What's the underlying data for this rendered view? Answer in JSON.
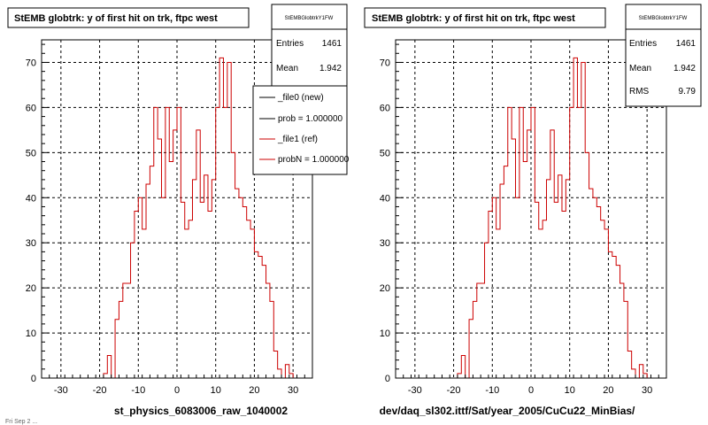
{
  "colors": {
    "histogram_line": "#cc0000",
    "frame": "#000000",
    "grid": "#000000",
    "background": "#ffffff",
    "legend_new": "#000000",
    "legend_ref": "#cc0000"
  },
  "footer_text": "Fri Sep  2 ...",
  "panels": [
    {
      "title": "StEMB globtrk: y of first hit on trk, ftpc west",
      "stats": {
        "name": "StEMBGlobtrkY1FW",
        "rows": [
          {
            "label": "Entries",
            "value": "1461"
          },
          {
            "label": "Mean",
            "value": "1.942"
          }
        ]
      },
      "legend": [
        {
          "label": "_file0 (new)",
          "color": "#000000"
        },
        {
          "label": "prob = 1.000000",
          "color": "#000000"
        },
        {
          "label": "_file1 (ref)",
          "color": "#cc0000"
        },
        {
          "label": "probN = 1.000000",
          "color": "#cc0000"
        }
      ],
      "xlabel": "st_physics_6083006_raw_1040002"
    },
    {
      "title": "StEMB globtrk: y of first hit on trk, ftpc west",
      "stats": {
        "name": "StEMBGlobtrkY1FW",
        "rows": [
          {
            "label": "Entries",
            "value": "1461"
          },
          {
            "label": "Mean",
            "value": "1.942"
          },
          {
            "label": "RMS",
            "value": "9.79"
          }
        ]
      },
      "legend": [],
      "xlabel": "dev/daq_sl302.ittf/Sat/year_2005/CuCu22_MinBias/"
    }
  ],
  "chart_data": [
    {
      "type": "histogram",
      "title": "StEMB globtrk: y of first hit on trk, ftpc west",
      "xlabel": "st_physics_6083006_raw_1040002",
      "ylabel": "",
      "xlim": [
        -35,
        35
      ],
      "ylim": [
        0,
        75
      ],
      "xticks": [
        -30,
        -20,
        -10,
        0,
        10,
        20,
        30
      ],
      "yticks": [
        0,
        10,
        20,
        30,
        40,
        50,
        60,
        70
      ],
      "grid": true,
      "legend_position": "top-right",
      "bin_width": 1,
      "bin_start": -35,
      "series": [
        {
          "name": "_file1 (ref)",
          "values": [
            0,
            0,
            0,
            0,
            0,
            0,
            0,
            0,
            0,
            0,
            0,
            0,
            0,
            0,
            0,
            0,
            1,
            5,
            0,
            13,
            17,
            21,
            21,
            30,
            37,
            40,
            33,
            43,
            47,
            60,
            53,
            40,
            60,
            48,
            55,
            60,
            39,
            33,
            35,
            44,
            55,
            39,
            45,
            37,
            44,
            60,
            71,
            60,
            70,
            50,
            42,
            40,
            38,
            35,
            33,
            28,
            27,
            25,
            21,
            17,
            6,
            2,
            0,
            3,
            1,
            0,
            0,
            0,
            0,
            0
          ]
        }
      ]
    },
    {
      "type": "histogram",
      "title": "StEMB globtrk: y of first hit on trk, ftpc west",
      "xlabel": "dev/daq_sl302.ittf/Sat/year_2005/CuCu22_MinBias/",
      "ylabel": "",
      "xlim": [
        -35,
        35
      ],
      "ylim": [
        0,
        75
      ],
      "xticks": [
        -30,
        -20,
        -10,
        0,
        10,
        20,
        30
      ],
      "yticks": [
        0,
        10,
        20,
        30,
        40,
        50,
        60,
        70
      ],
      "grid": true,
      "bin_width": 1,
      "bin_start": -35,
      "series": [
        {
          "name": "_file1 (ref)",
          "values": [
            0,
            0,
            0,
            0,
            0,
            0,
            0,
            0,
            0,
            0,
            0,
            0,
            0,
            0,
            0,
            0,
            1,
            5,
            0,
            13,
            17,
            21,
            21,
            30,
            37,
            40,
            33,
            43,
            47,
            60,
            53,
            40,
            60,
            48,
            55,
            60,
            39,
            33,
            35,
            44,
            55,
            39,
            45,
            37,
            44,
            60,
            71,
            60,
            70,
            50,
            42,
            40,
            38,
            35,
            33,
            28,
            27,
            25,
            21,
            17,
            6,
            2,
            0,
            3,
            1,
            0,
            0,
            0,
            0,
            0
          ]
        }
      ]
    }
  ]
}
